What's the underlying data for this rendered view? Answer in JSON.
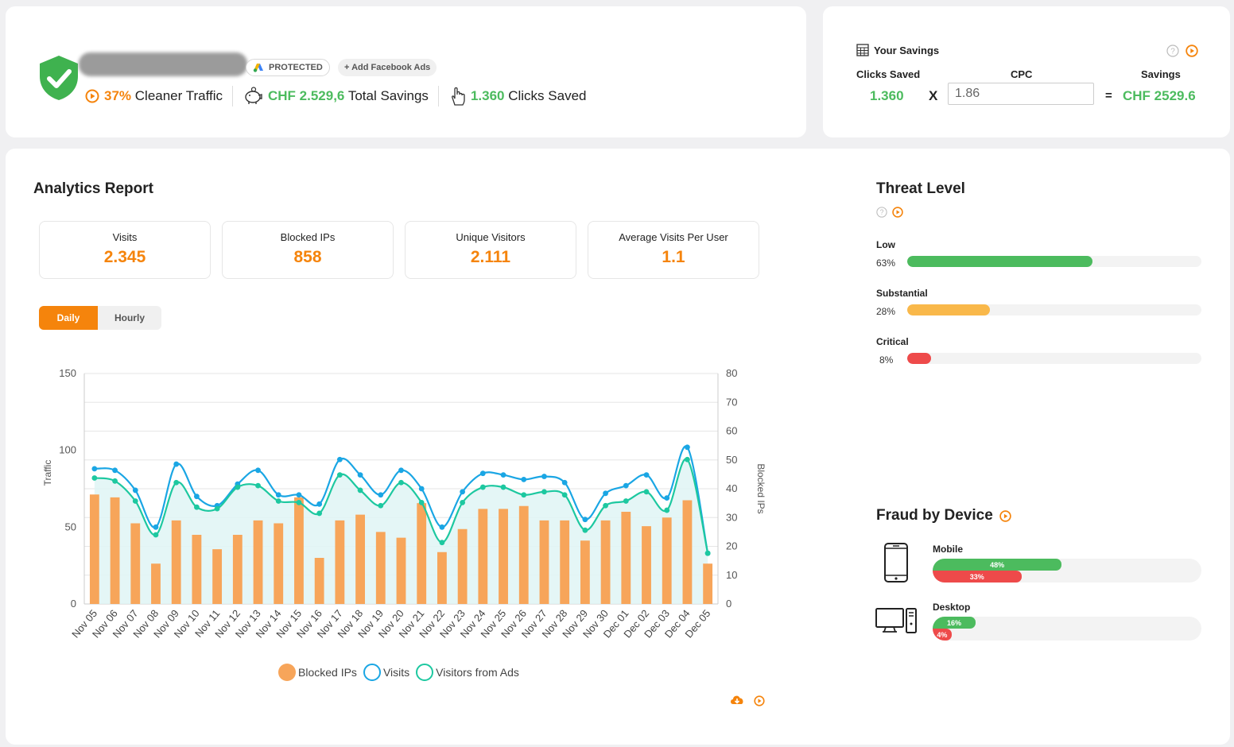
{
  "header": {
    "protected_label": "PROTECTED",
    "add_facebook_label": "+ Add Facebook Ads",
    "cleaner_value": "37%",
    "cleaner_label": "Cleaner Traffic",
    "savings_value": "CHF 2.529,6",
    "savings_label": "Total Savings",
    "clicks_value": "1.360",
    "clicks_label": "Clicks Saved"
  },
  "savings_calc": {
    "title": "Your Savings",
    "col_clicks": "Clicks Saved",
    "col_cpc": "CPC",
    "col_savings": "Savings",
    "clicks": "1.360",
    "times": "X",
    "cpc": "1.86",
    "equals": "=",
    "savings": "CHF 2529.6"
  },
  "analytics": {
    "title": "Analytics Report",
    "kpis": [
      {
        "label": "Visits",
        "value": "2.345"
      },
      {
        "label": "Blocked IPs",
        "value": "858"
      },
      {
        "label": "Unique Visitors",
        "value": "2.111"
      },
      {
        "label": "Average Visits Per User",
        "value": "1.1"
      }
    ],
    "tabs": {
      "daily": "Daily",
      "hourly": "Hourly"
    },
    "legend": {
      "blocked": "Blocked IPs",
      "visits": "Visits",
      "ads": "Visitors from Ads"
    }
  },
  "chart_data": {
    "type": "bar+line",
    "categories": [
      "Nov 05",
      "Nov 06",
      "Nov 07",
      "Nov 08",
      "Nov 09",
      "Nov 10",
      "Nov 11",
      "Nov 12",
      "Nov 13",
      "Nov 14",
      "Nov 15",
      "Nov 16",
      "Nov 17",
      "Nov 18",
      "Nov 19",
      "Nov 20",
      "Nov 21",
      "Nov 22",
      "Nov 23",
      "Nov 24",
      "Nov 25",
      "Nov 26",
      "Nov 27",
      "Nov 28",
      "Nov 29",
      "Nov 30",
      "Dec 01",
      "Dec 02",
      "Dec 03",
      "Dec 04",
      "Dec 05"
    ],
    "series": [
      {
        "name": "Blocked IPs",
        "axis": "right",
        "kind": "bar",
        "color": "#f7a55a",
        "values": [
          38,
          37,
          28,
          14,
          29,
          24,
          19,
          24,
          29,
          28,
          37,
          16,
          29,
          31,
          25,
          23,
          35,
          18,
          26,
          33,
          33,
          34,
          29,
          29,
          22,
          29,
          32,
          27,
          30,
          36,
          14
        ]
      },
      {
        "name": "Visits",
        "axis": "left",
        "kind": "line",
        "color": "#1aa6e4",
        "values": [
          88,
          87,
          74,
          50,
          91,
          70,
          64,
          78,
          87,
          71,
          71,
          65,
          94,
          84,
          71,
          87,
          75,
          50,
          73,
          85,
          84,
          81,
          83,
          79,
          55,
          72,
          77,
          84,
          69,
          102,
          33
        ]
      },
      {
        "name": "Visitors from Ads",
        "axis": "left",
        "kind": "line",
        "color": "#1dc8a0",
        "values": [
          82,
          80,
          67,
          45,
          79,
          63,
          62,
          76,
          77,
          67,
          66,
          59,
          84,
          74,
          64,
          79,
          66,
          40,
          66,
          76,
          76,
          71,
          73,
          71,
          48,
          64,
          67,
          73,
          61,
          94,
          33
        ]
      }
    ],
    "ylabel": "Traffic",
    "y2label": "Blocked IPs",
    "ylim": [
      0,
      150
    ],
    "y2lim": [
      0,
      80
    ],
    "yticks": [
      0,
      50,
      100,
      150
    ],
    "y2ticks": [
      0,
      10,
      20,
      30,
      40,
      50,
      60,
      70,
      80
    ]
  },
  "threat": {
    "title": "Threat Level",
    "levels": [
      {
        "label": "Low",
        "pct_text": "63%",
        "pct": 63,
        "color": "#4cbb5e"
      },
      {
        "label": "Substantial",
        "pct_text": "28%",
        "pct": 28,
        "color": "#f9b84a"
      },
      {
        "label": "Critical",
        "pct_text": "8%",
        "pct": 8,
        "color": "#ee4a4a"
      }
    ]
  },
  "fraud_device": {
    "title": "Fraud by Device",
    "devices": [
      {
        "label": "Mobile",
        "green_text": "48%",
        "green": 48,
        "red_text": "33%",
        "red": 33
      },
      {
        "label": "Desktop",
        "green_text": "16%",
        "green": 16,
        "red_text": "4%",
        "red": 4
      }
    ]
  }
}
